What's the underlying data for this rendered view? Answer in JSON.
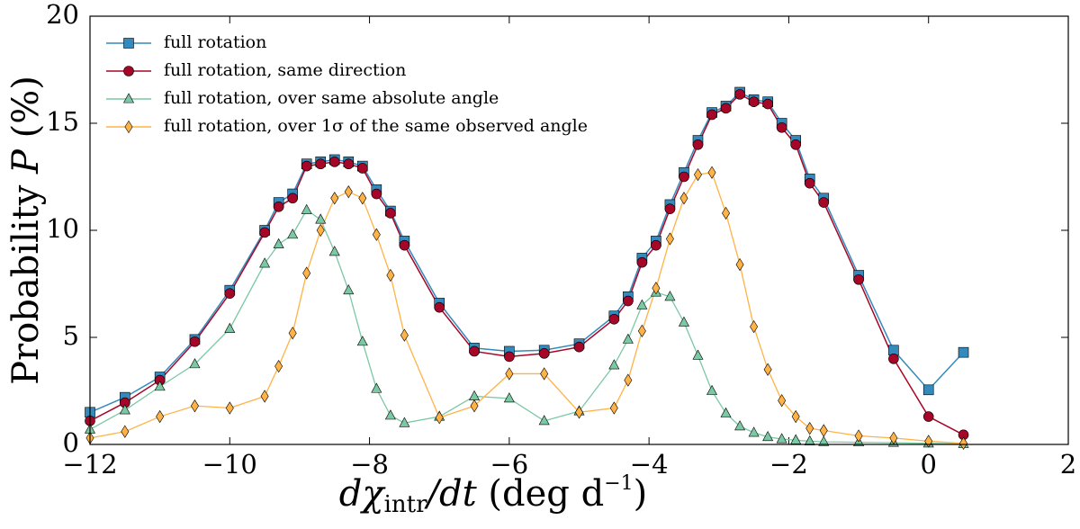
{
  "chart_data": {
    "type": "line",
    "xlabel_parts": [
      "dχ",
      "intr",
      "/dt",
      " (deg d",
      "−1",
      ")"
    ],
    "ylabel_parts": [
      "Probability ",
      "P",
      " (%)"
    ],
    "x": [
      -12,
      -11.5,
      -11,
      -10.5,
      -10,
      -9.5,
      -9.3,
      -9.1,
      -8.9,
      -8.7,
      -8.5,
      -8.3,
      -8.1,
      -7.9,
      -7.7,
      -7.5,
      -7,
      -6.5,
      -6,
      -5.5,
      -5,
      -4.5,
      -4.3,
      -4.1,
      -3.9,
      -3.7,
      -3.5,
      -3.3,
      -3.1,
      -2.9,
      -2.7,
      -2.5,
      -2.3,
      -2.1,
      -1.9,
      -1.7,
      -1.5,
      -1,
      -0.5,
      0,
      0.5
    ],
    "series": [
      {
        "name": "full rotation",
        "color": "#348abd",
        "marker": "square",
        "values": [
          1.5,
          2.2,
          3.15,
          4.9,
          7.2,
          10.0,
          11.3,
          11.7,
          13.1,
          13.2,
          13.3,
          13.2,
          13.0,
          11.9,
          10.9,
          9.5,
          6.6,
          4.5,
          4.35,
          4.4,
          4.7,
          6.0,
          6.9,
          8.7,
          9.5,
          11.2,
          12.7,
          14.2,
          15.5,
          15.8,
          16.45,
          16.1,
          16.0,
          15.0,
          14.2,
          12.4,
          11.5,
          7.9,
          4.4,
          2.55,
          4.3
        ]
      },
      {
        "name": "full rotation, same direction",
        "color": "#a60628",
        "marker": "circle",
        "values": [
          1.1,
          1.95,
          3.0,
          4.8,
          7.05,
          9.9,
          11.1,
          11.5,
          13.0,
          13.1,
          13.2,
          13.1,
          12.9,
          11.7,
          10.8,
          9.3,
          6.4,
          4.35,
          4.1,
          4.25,
          4.55,
          5.85,
          6.7,
          8.5,
          9.3,
          11.0,
          12.5,
          14.0,
          15.4,
          15.7,
          16.35,
          16.0,
          15.9,
          14.8,
          14.0,
          12.2,
          11.3,
          7.7,
          4.0,
          1.3,
          0.45
        ]
      },
      {
        "name": "full rotation, over same absolute angle",
        "color": "#7bc8a4",
        "marker": "triangle",
        "values": [
          0.7,
          1.6,
          2.7,
          3.75,
          5.4,
          8.45,
          9.35,
          9.8,
          10.95,
          10.5,
          9.0,
          7.2,
          4.8,
          2.6,
          1.35,
          1.0,
          1.3,
          2.25,
          2.15,
          1.1,
          1.55,
          3.7,
          4.9,
          6.5,
          7.1,
          6.9,
          5.7,
          4.15,
          2.5,
          1.45,
          0.85,
          0.55,
          0.35,
          0.25,
          0.2,
          0.15,
          0.12,
          0.1,
          0.08,
          0.05,
          0.03
        ]
      },
      {
        "name": "full rotation, over 1σ of the same observed angle",
        "color": "#ffb347",
        "marker": "diamond",
        "values": [
          0.3,
          0.6,
          1.3,
          1.8,
          1.7,
          2.25,
          3.65,
          5.2,
          8.0,
          10.0,
          11.5,
          11.8,
          11.5,
          9.8,
          7.9,
          5.1,
          1.25,
          1.8,
          3.3,
          3.3,
          1.5,
          1.7,
          3.0,
          5.3,
          7.3,
          9.6,
          11.5,
          12.6,
          12.7,
          10.8,
          8.4,
          5.5,
          3.5,
          2.05,
          1.3,
          0.75,
          0.65,
          0.4,
          0.3,
          0.15,
          0.05
        ]
      }
    ],
    "xlim": [
      -12,
      2
    ],
    "xticks": [
      {
        "value": -12,
        "label": "−12"
      },
      {
        "value": -10,
        "label": "−10"
      },
      {
        "value": -8,
        "label": "−8"
      },
      {
        "value": -6,
        "label": "−6"
      },
      {
        "value": -4,
        "label": "−4"
      },
      {
        "value": -2,
        "label": "−2"
      },
      0,
      2
    ],
    "ylim": [
      0,
      20
    ],
    "yticks": [
      0,
      5,
      10,
      15,
      20
    ],
    "legend": "upper left"
  }
}
